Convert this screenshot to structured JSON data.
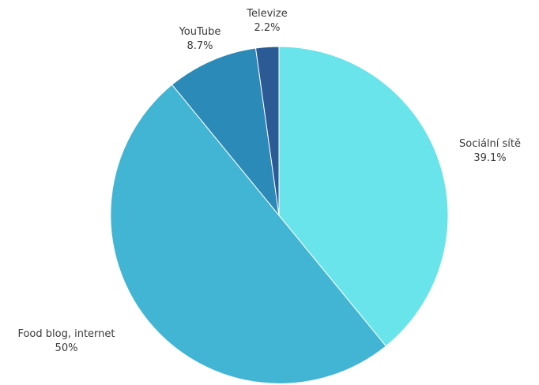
{
  "chart_data": {
    "type": "pie",
    "title": "",
    "slices": [
      {
        "label": "Sociální sítě",
        "value": 39.1,
        "value_label": "39.1%",
        "color": "#68E4EA"
      },
      {
        "label": "Food blog, internet",
        "value": 50,
        "value_label": "50%",
        "color": "#42B5D4"
      },
      {
        "label": "YouTube",
        "value": 8.7,
        "value_label": "8.7%",
        "color": "#2B8AB7"
      },
      {
        "label": "Televize",
        "value": 2.2,
        "value_label": "2.2%",
        "color": "#2C5A94"
      }
    ],
    "start_angle": "12 o'clock",
    "direction": "clockwise",
    "legend": "none",
    "labels": "outside"
  }
}
